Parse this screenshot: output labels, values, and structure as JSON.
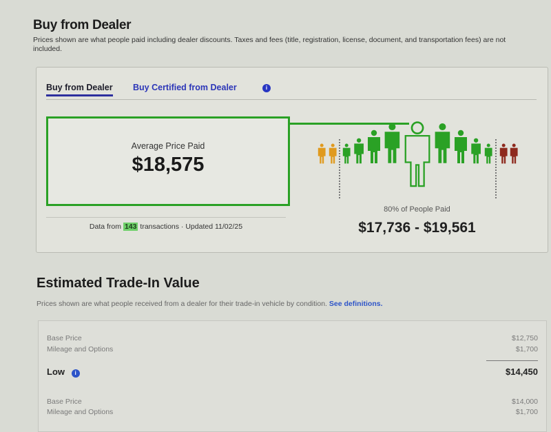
{
  "buy_section": {
    "title": "Buy from Dealer",
    "description": "Prices shown are what people paid including dealer discounts. Taxes and fees (title, registration, license, document, and transportation fees) are not included.",
    "tabs": [
      {
        "label": "Buy from Dealer",
        "active": true
      },
      {
        "label": "Buy Certified from Dealer",
        "active": false
      }
    ],
    "info_icon": "i",
    "average_label": "Average Price Paid",
    "average_value": "$18,575",
    "data_prefix": "Data from",
    "transactions": "143",
    "data_suffix": "transactions · Updated 11/02/25",
    "percent_label": "80% of People Paid",
    "range": "$17,736 - $19,561",
    "colors": {
      "below": "#e09a1e",
      "within": "#2aa125",
      "above": "#8e2a1e",
      "tab_active": "#2d2f9e",
      "link": "#2c36b8"
    }
  },
  "trade_section": {
    "title": "Estimated Trade-In Value",
    "description": "Prices shown are what people received from a dealer for their trade-in vehicle by condition.",
    "link": "See definitions.",
    "groups": [
      {
        "base_label": "Base Price",
        "base_value": "$12,750",
        "mileage_label": "Mileage and Options",
        "mileage_value": "$1,700",
        "total_label": "Low",
        "total_value": "$14,450"
      },
      {
        "base_label": "Base Price",
        "base_value": "$14,000",
        "mileage_label": "Mileage and Options",
        "mileage_value": "$1,700"
      }
    ]
  }
}
